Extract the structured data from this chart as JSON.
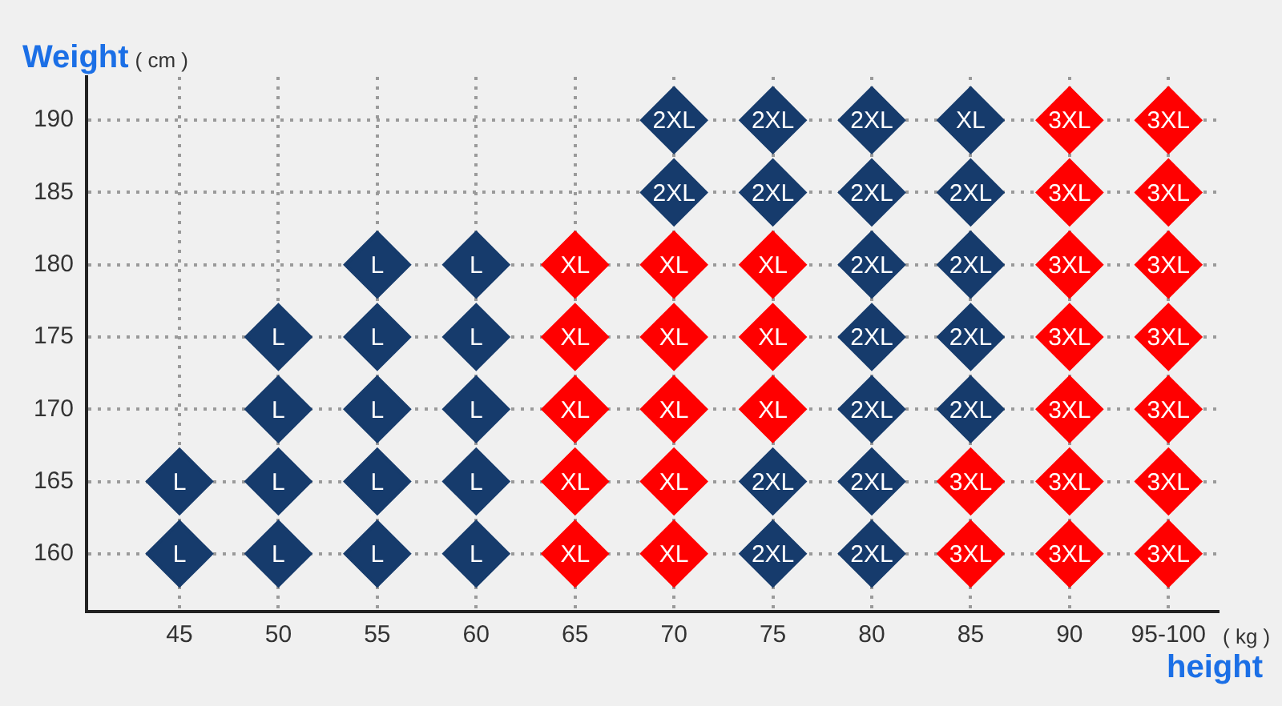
{
  "chart_data": {
    "type": "scatter",
    "ylabel": "Weight",
    "xlabel": "height",
    "annotations": [
      "( cm )",
      "( kg )"
    ],
    "categories": [
      "45",
      "50",
      "55",
      "60",
      "65",
      "70",
      "75",
      "80",
      "85",
      "90",
      "95-100"
    ],
    "ylim": [
      156,
      193
    ],
    "yticks": [
      160,
      165,
      170,
      175,
      180,
      185,
      190
    ],
    "grid": true,
    "marker": "diamond",
    "series": [
      {
        "name": "L",
        "color": "#163b6c",
        "x": [
          "45",
          "45",
          "50",
          "50",
          "50",
          "50",
          "55",
          "55",
          "55",
          "55",
          "55",
          "60",
          "60",
          "60",
          "60",
          "60"
        ],
        "values": [
          165,
          160,
          175,
          170,
          165,
          160,
          180,
          175,
          170,
          165,
          160,
          180,
          175,
          170,
          165,
          160
        ]
      },
      {
        "name": "XL",
        "colors": [
          "#ff0000",
          "#ff0000",
          "#ff0000",
          "#ff0000",
          "#ff0000",
          "#ff0000",
          "#ff0000",
          "#ff0000",
          "#ff0000",
          "#ff0000",
          "#ff0000",
          "#ff0000",
          "#ff0000",
          "#163b6c"
        ],
        "x": [
          "65",
          "65",
          "65",
          "65",
          "65",
          "70",
          "70",
          "70",
          "70",
          "70",
          "75",
          "75",
          "75",
          "85"
        ],
        "values": [
          180,
          175,
          170,
          165,
          160,
          180,
          175,
          170,
          165,
          160,
          180,
          175,
          170,
          190
        ]
      },
      {
        "name": "2XL",
        "color": "#163b6c",
        "x": [
          "70",
          "70",
          "75",
          "75",
          "75",
          "75",
          "80",
          "80",
          "80",
          "80",
          "80",
          "80",
          "80",
          "85",
          "85",
          "85",
          "85"
        ],
        "values": [
          190,
          185,
          190,
          185,
          165,
          160,
          190,
          185,
          180,
          175,
          170,
          165,
          160,
          185,
          180,
          175,
          170
        ]
      },
      {
        "name": "3XL",
        "color": "#ff0000",
        "x": [
          "85",
          "85",
          "90",
          "90",
          "90",
          "90",
          "90",
          "90",
          "90",
          "95-100",
          "95-100",
          "95-100",
          "95-100",
          "95-100",
          "95-100",
          "95-100"
        ],
        "values": [
          165,
          160,
          190,
          185,
          180,
          175,
          170,
          165,
          160,
          190,
          185,
          180,
          175,
          170,
          165,
          160
        ]
      }
    ]
  }
}
